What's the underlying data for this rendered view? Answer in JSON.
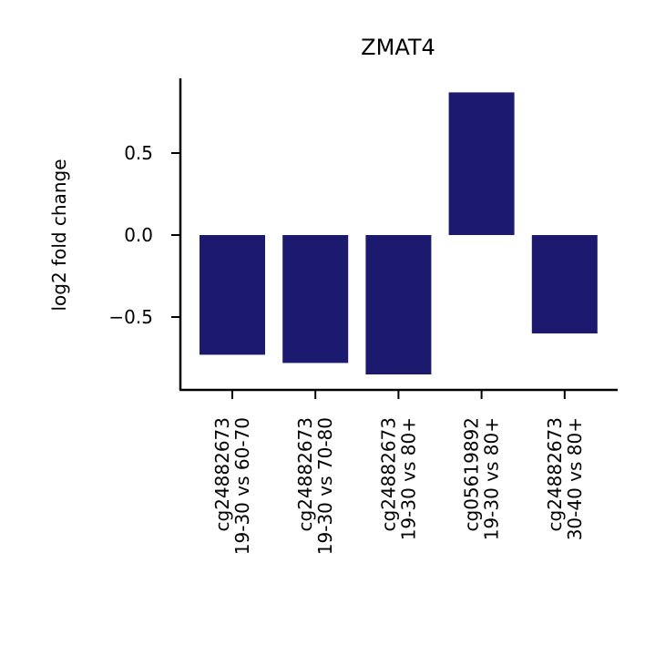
{
  "chart_data": {
    "type": "bar",
    "title": "ZMAT4",
    "xlabel": "",
    "ylabel": "log2 fold change",
    "categories": [
      [
        "cg24882673",
        "19-30 vs 60-70"
      ],
      [
        "cg24882673",
        "19-30 vs 70-80"
      ],
      [
        "cg24882673",
        "19-30 vs 80+"
      ],
      [
        "cg05619892",
        "19-30 vs 80+"
      ],
      [
        "cg24882673",
        "30-40 vs 80+"
      ]
    ],
    "values": [
      -0.73,
      -0.78,
      -0.85,
      0.87,
      -0.6
    ],
    "yticks": [
      -0.5,
      0.0,
      0.5
    ],
    "ytick_labels": [
      "−0.5",
      "0.0",
      "0.5"
    ],
    "ylim": [
      -0.94,
      0.95
    ],
    "grid": false,
    "legend": "none",
    "colors": {
      "bar": "#1b1a6e",
      "axis": "#000000",
      "text": "#000000"
    }
  }
}
